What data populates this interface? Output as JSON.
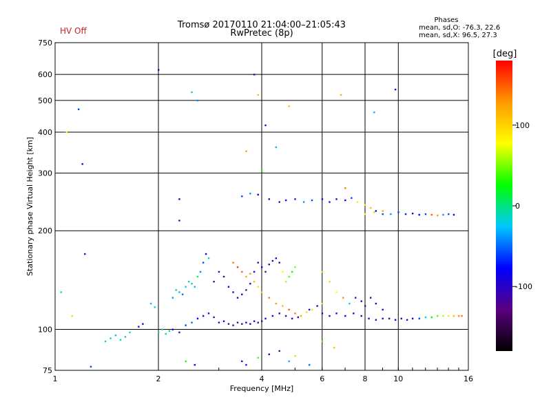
{
  "header": {
    "title_line1": "Tromsø 20170110 21:04:00–21:05:43",
    "title_line2": "RwPretec (8p)",
    "status": "HV Off",
    "stats_title": "Phases",
    "stats_o": "mean, sd,O: -76.3, 22.6",
    "stats_x": "mean, sd,X:  96.5, 27.3"
  },
  "chart_data": {
    "type": "scatter",
    "x_scale": "log",
    "y_scale": "log",
    "xlabel": "Frequency [MHz]",
    "ylabel": "Stationary phase Virtual Height [km]",
    "xlim": [
      1,
      16
    ],
    "ylim": [
      75,
      750
    ],
    "x_ticks": [
      1,
      2,
      4,
      6,
      8,
      10,
      16
    ],
    "x_tick_labels": [
      "1",
      "2",
      "4",
      "6",
      "8",
      "10",
      "16"
    ],
    "x_grid": [
      2,
      4,
      6,
      8,
      10
    ],
    "y_ticks": [
      75,
      100,
      200,
      300,
      400,
      500,
      600,
      750
    ],
    "y_tick_labels": [
      "75",
      "100",
      "200",
      "300",
      "400",
      "500",
      "600",
      "750"
    ],
    "y_grid": [
      100,
      200,
      300,
      400,
      500,
      600
    ],
    "grid": true,
    "colorbar": {
      "label": "[deg]",
      "range": [
        -180,
        180
      ],
      "ticks": [
        100,
        0,
        -100
      ],
      "tick_labels": [
        "100",
        "0",
        "-100"
      ],
      "colors": [
        "#000000",
        "#5b007f",
        "#0000ff",
        "#00c8ff",
        "#00ff00",
        "#ffff00",
        "#ff9900",
        "#ff0000"
      ]
    },
    "series": [
      {
        "points": [
          [
            1.04,
            130,
            10
          ],
          [
            1.08,
            400,
            80
          ],
          [
            1.12,
            110,
            60
          ],
          [
            1.17,
            470,
            -60
          ],
          [
            1.2,
            320,
            -100
          ],
          [
            1.22,
            170,
            -110
          ],
          [
            1.27,
            77,
            -60
          ]
        ]
      },
      {
        "points": [
          [
            1.4,
            92,
            -10
          ],
          [
            1.45,
            94,
            -20
          ],
          [
            1.5,
            96,
            -30
          ],
          [
            1.55,
            93,
            -5
          ],
          [
            1.6,
            95,
            -25
          ],
          [
            1.65,
            98,
            -15
          ]
        ]
      },
      {
        "points": [
          [
            1.75,
            102,
            -70
          ],
          [
            1.8,
            104,
            -80
          ],
          [
            1.9,
            120,
            -30
          ],
          [
            1.95,
            117,
            -20
          ],
          [
            2.0,
            98,
            -10
          ],
          [
            2.05,
            100,
            -5
          ],
          [
            2.1,
            97,
            -15
          ],
          [
            2.15,
            99,
            0
          ]
        ]
      },
      {
        "points": [
          [
            2.2,
            125,
            -40
          ],
          [
            2.25,
            132,
            -10
          ],
          [
            2.3,
            130,
            -30
          ],
          [
            2.35,
            128,
            -50
          ],
          [
            2.4,
            135,
            -20
          ],
          [
            2.45,
            140,
            -15
          ],
          [
            2.5,
            138,
            -5
          ],
          [
            2.55,
            135,
            -30
          ],
          [
            2.6,
            145,
            10
          ],
          [
            2.65,
            150,
            -40
          ],
          [
            2.7,
            160,
            -60
          ],
          [
            2.75,
            170,
            -80
          ],
          [
            2.8,
            165,
            -10
          ]
        ]
      },
      {
        "points": [
          [
            2.2,
            100,
            -90
          ],
          [
            2.3,
            98,
            -70
          ],
          [
            2.4,
            103,
            -60
          ],
          [
            2.5,
            105,
            -50
          ],
          [
            2.6,
            108,
            -80
          ],
          [
            2.7,
            110,
            -100
          ],
          [
            2.8,
            112,
            -110
          ],
          [
            2.9,
            109,
            -120
          ]
        ]
      },
      {
        "points": [
          [
            2.3,
            250,
            -90
          ],
          [
            2.3,
            215,
            -110
          ],
          [
            2.5,
            530,
            -20
          ],
          [
            2.6,
            500,
            -40
          ],
          [
            2.0,
            620,
            -90
          ],
          [
            2.4,
            80,
            30
          ],
          [
            2.55,
            78,
            -90
          ]
        ]
      },
      {
        "points": [
          [
            2.9,
            140,
            -120
          ],
          [
            3.0,
            150,
            -100
          ],
          [
            3.1,
            145,
            -130
          ],
          [
            3.2,
            135,
            -90
          ],
          [
            3.3,
            130,
            -110
          ],
          [
            3.4,
            125,
            -100
          ],
          [
            3.5,
            128,
            -80
          ],
          [
            3.6,
            132,
            -120
          ],
          [
            3.7,
            138,
            -100
          ],
          [
            3.8,
            150,
            -90
          ],
          [
            3.9,
            160,
            -110
          ],
          [
            4.0,
            155,
            -100
          ],
          [
            4.1,
            150,
            -120
          ],
          [
            4.2,
            158,
            -130
          ],
          [
            4.3,
            162,
            -90
          ],
          [
            4.4,
            165,
            -110
          ],
          [
            4.5,
            160,
            -100
          ],
          [
            4.6,
            150,
            80
          ],
          [
            4.7,
            140,
            60
          ],
          [
            4.8,
            145,
            40
          ],
          [
            4.9,
            150,
            30
          ],
          [
            5.0,
            155,
            50
          ]
        ]
      },
      {
        "points": [
          [
            3.0,
            105,
            -110
          ],
          [
            3.1,
            106,
            -90
          ],
          [
            3.2,
            104,
            -100
          ],
          [
            3.3,
            103,
            -120
          ],
          [
            3.4,
            105,
            -110
          ],
          [
            3.5,
            104,
            -100
          ],
          [
            3.6,
            105,
            -90
          ],
          [
            3.7,
            104,
            -80
          ],
          [
            3.8,
            106,
            -100
          ],
          [
            3.9,
            105,
            -110
          ],
          [
            4.0,
            106,
            -120
          ],
          [
            4.1,
            108,
            -100
          ],
          [
            4.3,
            110,
            -90
          ],
          [
            4.5,
            112,
            -110
          ],
          [
            4.7,
            110,
            -120
          ],
          [
            4.9,
            108,
            -100
          ],
          [
            5.1,
            109,
            -110
          ]
        ]
      },
      {
        "points": [
          [
            3.3,
            160,
            140
          ],
          [
            3.4,
            155,
            160
          ],
          [
            3.5,
            150,
            150
          ],
          [
            3.6,
            145,
            120
          ],
          [
            3.7,
            148,
            130
          ],
          [
            3.8,
            140,
            110
          ],
          [
            3.9,
            135,
            90
          ],
          [
            4.0,
            130,
            100
          ],
          [
            4.2,
            125,
            140
          ],
          [
            4.4,
            120,
            130
          ],
          [
            4.6,
            118,
            110
          ],
          [
            4.8,
            115,
            150
          ],
          [
            5.0,
            112,
            140
          ],
          [
            5.2,
            110,
            120
          ],
          [
            5.4,
            113,
            100
          ],
          [
            5.6,
            115,
            90
          ],
          [
            5.8,
            118,
            70
          ],
          [
            6.0,
            120,
            60
          ]
        ]
      },
      {
        "points": [
          [
            3.5,
            80,
            -90
          ],
          [
            3.6,
            78,
            -70
          ],
          [
            3.9,
            82,
            40
          ],
          [
            4.2,
            84,
            -100
          ],
          [
            4.5,
            86,
            -120
          ],
          [
            4.8,
            80,
            -30
          ],
          [
            5.0,
            83,
            60
          ],
          [
            5.5,
            78,
            -50
          ],
          [
            6.0,
            92,
            40
          ],
          [
            6.5,
            88,
            110
          ]
        ]
      },
      {
        "points": [
          [
            3.5,
            255,
            -60
          ],
          [
            3.7,
            260,
            -40
          ],
          [
            3.9,
            258,
            -90
          ],
          [
            4.2,
            250,
            -100
          ],
          [
            4.5,
            245,
            -110
          ],
          [
            4.7,
            248,
            -80
          ],
          [
            5.0,
            250,
            -70
          ],
          [
            5.3,
            245,
            -40
          ],
          [
            5.6,
            248,
            -60
          ],
          [
            6.0,
            250,
            -90
          ],
          [
            6.3,
            245,
            -110
          ],
          [
            6.6,
            250,
            -100
          ],
          [
            7.0,
            248,
            -80
          ],
          [
            7.3,
            252,
            -60
          ],
          [
            7.6,
            245,
            70
          ],
          [
            8.0,
            240,
            90
          ],
          [
            8.3,
            235,
            110
          ],
          [
            8.6,
            230,
            -80
          ],
          [
            9.0,
            225,
            -60
          ]
        ]
      },
      {
        "points": [
          [
            3.6,
            350,
            120
          ],
          [
            3.8,
            600,
            -110
          ],
          [
            3.9,
            520,
            110
          ],
          [
            4.1,
            420,
            -100
          ],
          [
            4.4,
            360,
            -30
          ],
          [
            4.8,
            480,
            110
          ],
          [
            6.8,
            520,
            120
          ],
          [
            7.0,
            270,
            140
          ],
          [
            8.5,
            460,
            -30
          ],
          [
            9.8,
            540,
            -110
          ],
          [
            4.0,
            305,
            20
          ]
        ]
      },
      {
        "points": [
          [
            5.5,
            115,
            -90
          ],
          [
            5.8,
            118,
            -110
          ],
          [
            6.0,
            112,
            -100
          ],
          [
            6.3,
            110,
            -110
          ],
          [
            6.6,
            112,
            -100
          ],
          [
            7.0,
            110,
            -90
          ],
          [
            7.4,
            112,
            -100
          ],
          [
            7.8,
            110,
            -110
          ],
          [
            8.2,
            108,
            -110
          ],
          [
            8.6,
            107,
            -120
          ],
          [
            9.0,
            108,
            -100
          ],
          [
            9.4,
            108,
            -110
          ],
          [
            9.8,
            107,
            -100
          ],
          [
            10.2,
            108,
            -110
          ],
          [
            10.6,
            107,
            -100
          ],
          [
            11.0,
            108,
            -80
          ],
          [
            11.5,
            108,
            -60
          ],
          [
            12.0,
            109,
            -20
          ],
          [
            12.5,
            109,
            20
          ],
          [
            13.0,
            110,
            40
          ],
          [
            13.5,
            110,
            60
          ],
          [
            14.0,
            110,
            90
          ],
          [
            14.5,
            110,
            110
          ],
          [
            15.0,
            110,
            130
          ],
          [
            15.3,
            110,
            140
          ]
        ]
      },
      {
        "points": [
          [
            6.0,
            150,
            60
          ],
          [
            6.3,
            140,
            100
          ],
          [
            6.6,
            130,
            80
          ],
          [
            6.9,
            125,
            130
          ],
          [
            7.2,
            120,
            -20
          ],
          [
            7.5,
            125,
            -70
          ],
          [
            7.8,
            122,
            -100
          ],
          [
            8.0,
            118,
            -120
          ],
          [
            8.3,
            125,
            -110
          ],
          [
            8.6,
            120,
            -90
          ],
          [
            9.0,
            115,
            -100
          ]
        ]
      },
      {
        "points": [
          [
            8.0,
            225,
            80
          ],
          [
            8.5,
            228,
            100
          ],
          [
            9.0,
            230,
            120
          ],
          [
            9.5,
            225,
            -40
          ],
          [
            10.0,
            228,
            -60
          ],
          [
            10.5,
            225,
            -70
          ],
          [
            11.0,
            226,
            -90
          ],
          [
            11.5,
            224,
            -80
          ],
          [
            12.0,
            225,
            -60
          ],
          [
            12.5,
            224,
            150
          ],
          [
            13.0,
            223,
            130
          ],
          [
            13.5,
            224,
            -40
          ],
          [
            14.0,
            225,
            -60
          ],
          [
            14.5,
            224,
            -80
          ]
        ]
      }
    ]
  }
}
